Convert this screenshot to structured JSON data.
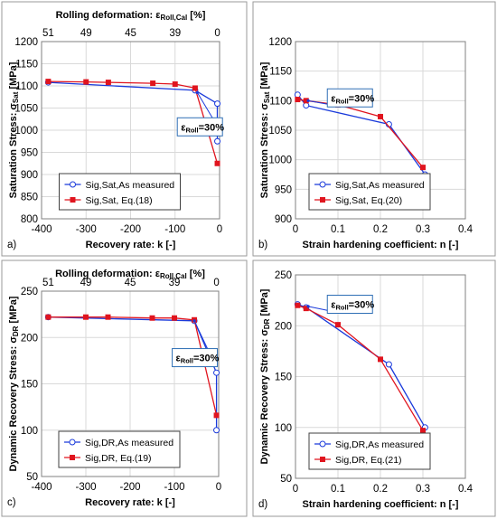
{
  "colors": {
    "measured": "#1a3adb",
    "equation": "#e0141e",
    "grid": "#d9d9d9",
    "annotation_border": "#2f6fb5"
  },
  "chart_data": [
    {
      "panel": "a)",
      "type": "line",
      "xlabel": "Recovery rate: k [-]",
      "ylabel": "Saturation Stress:  σSat [MPa]",
      "top_label": "Rolling deformation: εRoll,Cal [%]",
      "top_ticks": [
        {
          "label": "51",
          "x": -385
        },
        {
          "label": "49",
          "x": -300
        },
        {
          "label": "45",
          "x": -200
        },
        {
          "label": "39",
          "x": -100
        },
        {
          "label": "0",
          "x": -5
        }
      ],
      "xlim": [
        -400,
        0
      ],
      "xticks": [
        -400,
        -300,
        -200,
        -100,
        0
      ],
      "ylim": [
        800,
        1200
      ],
      "yticks": [
        800,
        850,
        900,
        950,
        1000,
        1050,
        1100,
        1150,
        1200
      ],
      "grid": true,
      "legend_position": "bottom-center",
      "annotation": {
        "main": "ε",
        "sub": "Roll",
        "tail": "=30%",
        "at_x": -50,
        "at_y": 1085,
        "box_x": -95,
        "box_y": 1028
      },
      "series": [
        {
          "name": "Sig,Sat,As measured",
          "marker": "circle",
          "color": "#1a3adb",
          "x": [
            -385,
            -55,
            -5,
            -5,
            -5
          ],
          "y": [
            1108,
            1090,
            1060,
            1000,
            975
          ]
        },
        {
          "name": "Sig,Sat, Eq.(18)",
          "marker": "square",
          "color": "#e0141e",
          "x": [
            -385,
            -300,
            -250,
            -150,
            -100,
            -55,
            -5
          ],
          "y": [
            1110,
            1109,
            1108,
            1106,
            1104,
            1095,
            925
          ]
        }
      ]
    },
    {
      "panel": "b)",
      "type": "line",
      "xlabel": "Strain hardening coefficient: n [-]",
      "ylabel": "Saturation Stress:  σSat [MPa]",
      "xlim": [
        0,
        0.4
      ],
      "xticks": [
        0,
        0.1,
        0.2,
        0.3,
        0.4
      ],
      "ylim": [
        900,
        1200
      ],
      "yticks": [
        900,
        950,
        1000,
        1050,
        1100,
        1150,
        1200
      ],
      "grid": true,
      "legend_position": "bottom-center",
      "annotation": {
        "main": "ε",
        "sub": "Roll",
        "tail": "=30%",
        "at_x": 0.03,
        "at_y": 1100,
        "box_x": 0.075,
        "box_y": 1120
      },
      "series": [
        {
          "name": "Sig,Sat,As measured",
          "marker": "circle",
          "color": "#1a3adb",
          "x": [
            0.005,
            0.025,
            0.22,
            0.305
          ],
          "y": [
            1110,
            1092,
            1060,
            975
          ]
        },
        {
          "name": "Sig,Sat, Eq.(20)",
          "marker": "square",
          "color": "#e0141e",
          "x": [
            0.005,
            0.025,
            0.1,
            0.2,
            0.3
          ],
          "y": [
            1102,
            1100,
            1093,
            1073,
            987
          ]
        }
      ]
    },
    {
      "panel": "c)",
      "type": "line",
      "xlabel": "Recovery rate: k [-]",
      "ylabel": "Dynamic Recovery Stress:  σDR [MPa]",
      "top_label": "Rolling deformation: εRoll,Cal [%]",
      "top_ticks": [
        {
          "label": "51",
          "x": -385
        },
        {
          "label": "49",
          "x": -300
        },
        {
          "label": "45",
          "x": -200
        },
        {
          "label": "39",
          "x": -100
        },
        {
          "label": "0",
          "x": -5
        }
      ],
      "xlim": [
        -400,
        0
      ],
      "xticks": [
        -400,
        -300,
        -200,
        -100,
        0
      ],
      "ylim": [
        50,
        250
      ],
      "yticks": [
        50,
        100,
        150,
        200,
        250
      ],
      "grid": true,
      "legend_position": "bottom-center",
      "annotation": {
        "main": "ε",
        "sub": "Roll",
        "tail": "=30%",
        "at_x": -55,
        "at_y": 218,
        "box_x": -105,
        "box_y": 188
      },
      "series": [
        {
          "name": "Sig,DR,As measured",
          "marker": "circle",
          "color": "#1a3adb",
          "x": [
            -385,
            -55,
            -5,
            -5
          ],
          "y": [
            222,
            218,
            162,
            100
          ]
        },
        {
          "name": "Sig,DR, Eq.(19)",
          "marker": "square",
          "color": "#e0141e",
          "x": [
            -385,
            -300,
            -250,
            -150,
            -100,
            -55,
            -5
          ],
          "y": [
            222,
            222,
            222,
            221,
            221,
            219,
            116
          ]
        }
      ]
    },
    {
      "panel": "d)",
      "type": "line",
      "xlabel": "Strain hardening coefficient: n [-]",
      "ylabel": "Dynamic Recovery Stress:  σDR [MPa]",
      "xlim": [
        0,
        0.4
      ],
      "xticks": [
        0,
        0.1,
        0.2,
        0.3,
        0.4
      ],
      "ylim": [
        50,
        250
      ],
      "yticks": [
        50,
        100,
        150,
        200,
        250
      ],
      "grid": true,
      "legend_position": "bottom-center",
      "annotation": {
        "main": "ε",
        "sub": "Roll",
        "tail": "=30%",
        "at_x": 0.03,
        "at_y": 219,
        "box_x": 0.075,
        "box_y": 230
      },
      "series": [
        {
          "name": "Sig,DR,As measured",
          "marker": "circle",
          "color": "#1a3adb",
          "x": [
            0.005,
            0.025,
            0.22,
            0.305
          ],
          "y": [
            221,
            218,
            162,
            100
          ]
        },
        {
          "name": "Sig,DR, Eq.(21)",
          "marker": "square",
          "color": "#e0141e",
          "x": [
            0.005,
            0.025,
            0.1,
            0.2,
            0.3
          ],
          "y": [
            220,
            217,
            201,
            167,
            97
          ]
        }
      ]
    }
  ]
}
